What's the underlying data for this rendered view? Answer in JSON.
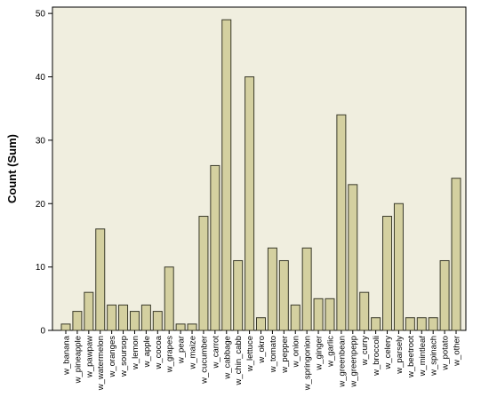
{
  "chart_data": {
    "type": "bar",
    "ylabel": "Count (Sum)",
    "xlabel": "",
    "ylim": [
      0,
      51
    ],
    "yticks": [
      0,
      10,
      20,
      30,
      40,
      50
    ],
    "grid": false,
    "categories": [
      "w_banana",
      "w_pineapple",
      "w_pawpaw",
      "w_watermelon",
      "w_oranges",
      "w_soursop",
      "w_lemon",
      "w_apple",
      "w_cocoa",
      "w_grapes",
      "w_pear",
      "w_maize",
      "w_cucumber",
      "w_carrot",
      "w_cabbage",
      "w_chin_cabb",
      "w_lettuce",
      "w_okro",
      "w_tomato",
      "w_pepper",
      "w_onion",
      "w_springonion",
      "w_ginger",
      "w_garlic",
      "w_greenbean",
      "w_greenpepp",
      "w_curry",
      "w_broccoli",
      "w_celery",
      "w_parsely",
      "w_beetroot",
      "w_mintleaf",
      "w_spinach",
      "w_potato",
      "w_other"
    ],
    "values": [
      1,
      3,
      6,
      16,
      4,
      4,
      3,
      4,
      3,
      10,
      1,
      1,
      18,
      26,
      49,
      11,
      40,
      2,
      13,
      11,
      4,
      13,
      5,
      5,
      34,
      23,
      6,
      2,
      18,
      20,
      2,
      2,
      2,
      11,
      24
    ],
    "colors": {
      "bar_fill": "#d4d0a0",
      "bar_stroke": "#3a3a2a",
      "plot_bg": "#f0eedf",
      "axis": "#000000"
    }
  }
}
